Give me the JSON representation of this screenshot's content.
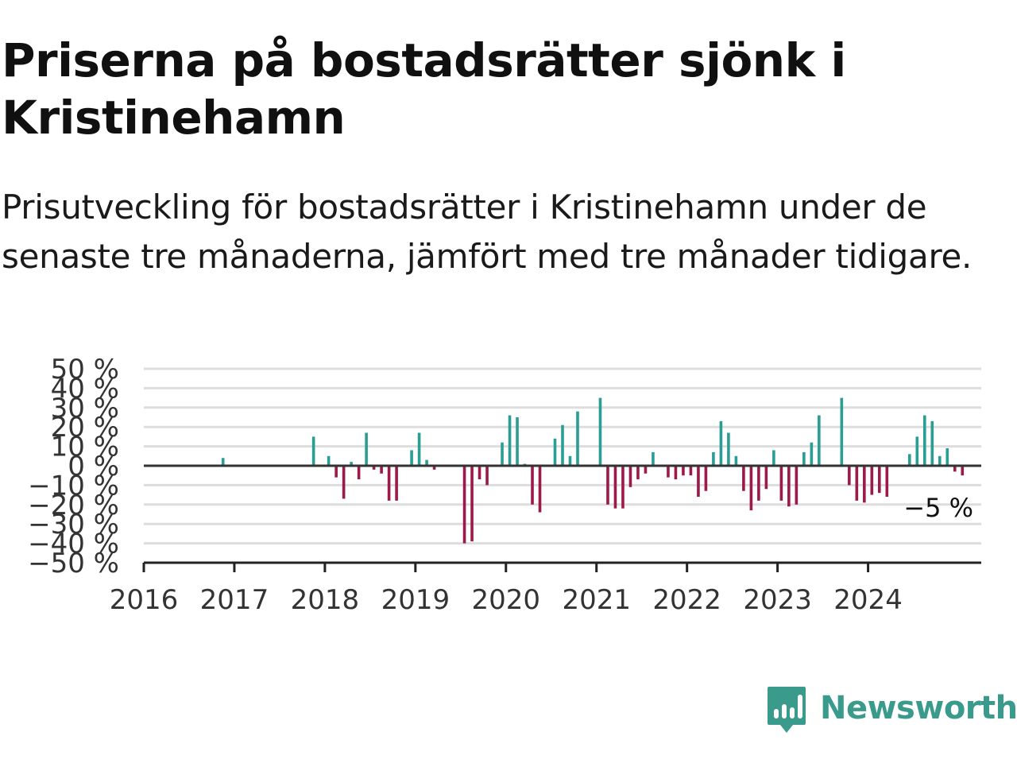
{
  "title": "Priserna på bostadsrätter sjönk i Kristinehamn",
  "subtitle": "Prisutveckling för bostadsrätter i Kristinehamn under de senaste tre månaderna, jämfört med tre månader tidigare.",
  "brand": {
    "name": "Newsworthy",
    "color": "#3a9a8c",
    "icon": "newsworthy-logo-icon"
  },
  "colors": {
    "positive": "#2a9d95",
    "negative": "#9c1a4a",
    "zero_line": "#333333",
    "grid": "#dddddd"
  },
  "chart_data": {
    "type": "bar",
    "title": "Priserna på bostadsrätter sjönk i Kristinehamn",
    "subtitle": "Prisutveckling för bostadsrätter i Kristinehamn under de senaste tre månaderna, jämfört med tre månader tidigare.",
    "xlabel": "",
    "ylabel": "",
    "x_domain": [
      "2016-01",
      "2025-04"
    ],
    "ylim": [
      -50,
      50
    ],
    "y_ticks": [
      50,
      40,
      30,
      20,
      10,
      0,
      -10,
      -20,
      -30,
      -40,
      -50
    ],
    "y_tick_labels": [
      "50 %",
      "40 %",
      "30 %",
      "20 %",
      "10 %",
      "0 %",
      "−10 %",
      "−20 %",
      "−30 %",
      "−40 %",
      "−50 %"
    ],
    "x_ticks": [
      "2016",
      "2017",
      "2018",
      "2019",
      "2020",
      "2021",
      "2022",
      "2023",
      "2024"
    ],
    "grid": true,
    "last_value_label": "−5 %",
    "series": [
      {
        "values": [
          {
            "x": "2016-11",
            "y": 4
          },
          {
            "x": "2017-11",
            "y": 15
          },
          {
            "x": "2018-01",
            "y": 5
          },
          {
            "x": "2018-02",
            "y": -6
          },
          {
            "x": "2018-03",
            "y": -17
          },
          {
            "x": "2018-04",
            "y": 2
          },
          {
            "x": "2018-05",
            "y": -7
          },
          {
            "x": "2018-06",
            "y": 17
          },
          {
            "x": "2018-07",
            "y": -2
          },
          {
            "x": "2018-08",
            "y": -4
          },
          {
            "x": "2018-09",
            "y": -18
          },
          {
            "x": "2018-10",
            "y": -18
          },
          {
            "x": "2018-12",
            "y": 8
          },
          {
            "x": "2019-01",
            "y": 17
          },
          {
            "x": "2019-02",
            "y": 3
          },
          {
            "x": "2019-03",
            "y": -2
          },
          {
            "x": "2019-07",
            "y": -40
          },
          {
            "x": "2019-08",
            "y": -39
          },
          {
            "x": "2019-09",
            "y": -7
          },
          {
            "x": "2019-10",
            "y": -10
          },
          {
            "x": "2019-12",
            "y": 12
          },
          {
            "x": "2020-01",
            "y": 26
          },
          {
            "x": "2020-02",
            "y": 25
          },
          {
            "x": "2020-03",
            "y": 1
          },
          {
            "x": "2020-04",
            "y": -20
          },
          {
            "x": "2020-05",
            "y": -24
          },
          {
            "x": "2020-07",
            "y": 14
          },
          {
            "x": "2020-08",
            "y": 21
          },
          {
            "x": "2020-09",
            "y": 5
          },
          {
            "x": "2020-10",
            "y": 28
          },
          {
            "x": "2021-01",
            "y": 35
          },
          {
            "x": "2021-02",
            "y": -20
          },
          {
            "x": "2021-03",
            "y": -22
          },
          {
            "x": "2021-04",
            "y": -22
          },
          {
            "x": "2021-05",
            "y": -11
          },
          {
            "x": "2021-06",
            "y": -7
          },
          {
            "x": "2021-07",
            "y": -4
          },
          {
            "x": "2021-08",
            "y": 7
          },
          {
            "x": "2021-10",
            "y": -6
          },
          {
            "x": "2021-11",
            "y": -7
          },
          {
            "x": "2021-12",
            "y": -5
          },
          {
            "x": "2022-01",
            "y": -5
          },
          {
            "x": "2022-02",
            "y": -16
          },
          {
            "x": "2022-03",
            "y": -13
          },
          {
            "x": "2022-04",
            "y": 7
          },
          {
            "x": "2022-05",
            "y": 23
          },
          {
            "x": "2022-06",
            "y": 17
          },
          {
            "x": "2022-07",
            "y": 5
          },
          {
            "x": "2022-08",
            "y": -13
          },
          {
            "x": "2022-09",
            "y": -23
          },
          {
            "x": "2022-10",
            "y": -18
          },
          {
            "x": "2022-11",
            "y": -12
          },
          {
            "x": "2022-12",
            "y": 8
          },
          {
            "x": "2023-01",
            "y": -18
          },
          {
            "x": "2023-02",
            "y": -21
          },
          {
            "x": "2023-03",
            "y": -20
          },
          {
            "x": "2023-04",
            "y": 7
          },
          {
            "x": "2023-05",
            "y": 12
          },
          {
            "x": "2023-06",
            "y": 26
          },
          {
            "x": "2023-09",
            "y": 35
          },
          {
            "x": "2023-10",
            "y": -10
          },
          {
            "x": "2023-11",
            "y": -18
          },
          {
            "x": "2023-12",
            "y": -19
          },
          {
            "x": "2024-01",
            "y": -15
          },
          {
            "x": "2024-02",
            "y": -14
          },
          {
            "x": "2024-03",
            "y": -16
          },
          {
            "x": "2024-06",
            "y": 6
          },
          {
            "x": "2024-07",
            "y": 15
          },
          {
            "x": "2024-08",
            "y": 26
          },
          {
            "x": "2024-09",
            "y": 23
          },
          {
            "x": "2024-10",
            "y": 5
          },
          {
            "x": "2024-11",
            "y": 9
          },
          {
            "x": "2024-12",
            "y": -3
          },
          {
            "x": "2025-01",
            "y": -5
          }
        ]
      }
    ]
  }
}
